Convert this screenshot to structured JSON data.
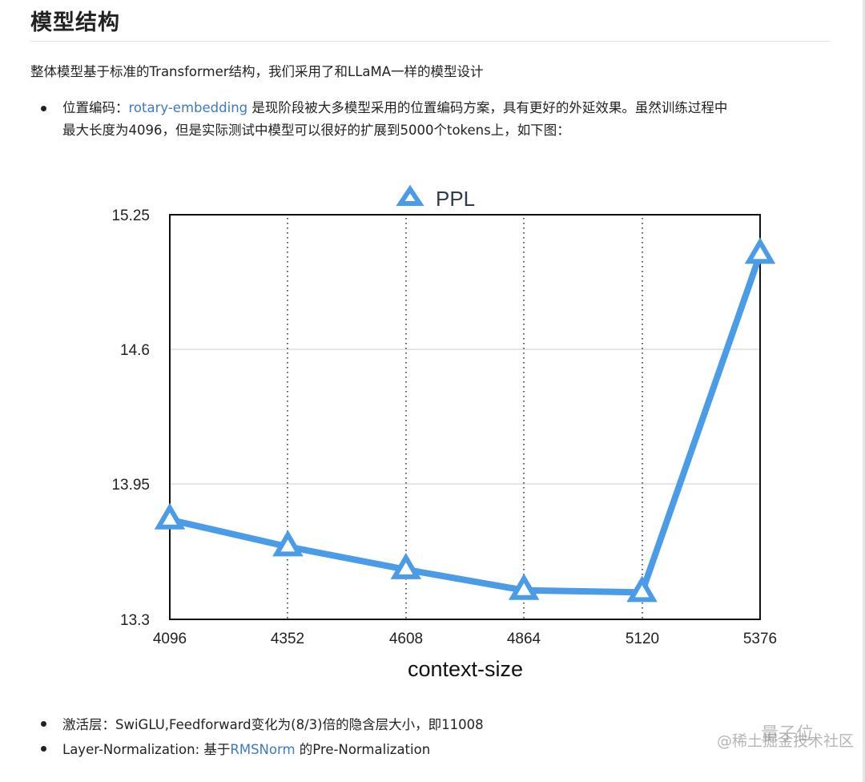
{
  "heading": "模型结构",
  "intro": "整体模型基于标准的Transformer结构，我们采用了和LLaMA一样的模型设计",
  "bullets_top": [
    {
      "prefix": "位置编码：",
      "link": "rotary-embedding",
      "suffix_line1": " 是现阶段被大多模型采用的位置编码方案，具有更好的外延效果。虽然训练过程中",
      "line2": "最大长度为4096，但是实际测试中模型可以很好的扩展到5000个tokens上，如下图："
    }
  ],
  "bullets_bottom": [
    {
      "text": "激活层：SwiGLU,Feedforward变化为(8/3)倍的隐含层大小，即11008"
    },
    {
      "prefix": "Layer-Normalization: 基于",
      "link": "RMSNorm",
      "suffix": " 的Pre-Normalization"
    }
  ],
  "watermark": {
    "line1": "量子位",
    "line2": "@稀土掘金技术社区"
  },
  "colors": {
    "series": "#4a9be8",
    "link": "#3d7bbf",
    "text": "#222222",
    "grid": "#cccccc"
  },
  "chart_data": {
    "type": "line",
    "title": "",
    "legend": [
      "PPL"
    ],
    "legend_position": "top-center",
    "xlabel": "context-size",
    "ylabel": "",
    "categories": [
      "4096",
      "4352",
      "4608",
      "4864",
      "5120",
      "5376"
    ],
    "x": [
      4096,
      4352,
      4608,
      4864,
      5120,
      5376
    ],
    "series": [
      {
        "name": "PPL",
        "marker": "triangle",
        "values": [
          13.78,
          13.65,
          13.54,
          13.44,
          13.43,
          15.06
        ]
      }
    ],
    "yticks": [
      "13.3",
      "13.95",
      "14.6",
      "15.25"
    ],
    "ylim": [
      13.3,
      15.25
    ],
    "xlim": [
      4096,
      5376
    ],
    "grid": {
      "horizontal": "solid light gray",
      "vertical": "dotted black"
    }
  }
}
